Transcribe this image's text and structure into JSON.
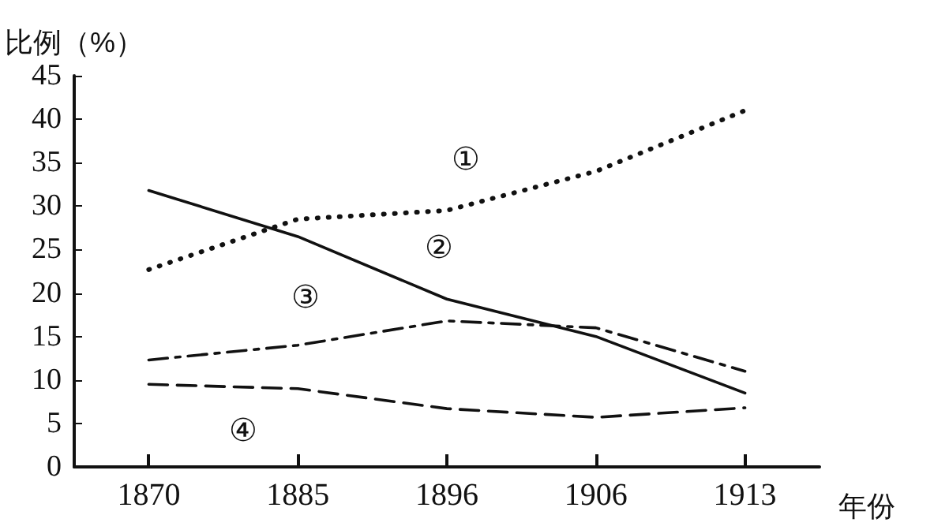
{
  "chart_data": {
    "type": "line",
    "ylabel": "比例（%）",
    "xlabel": "年份",
    "categories": [
      "1870",
      "1885",
      "1896",
      "1906",
      "1913"
    ],
    "series": [
      {
        "name": "①",
        "color": "#111111",
        "line_style": "dotted",
        "values": [
          22.7,
          28.5,
          29.5,
          34,
          41
        ]
      },
      {
        "name": "②",
        "color": "#111111",
        "line_style": "solid",
        "values": [
          31.8,
          26.5,
          19.3,
          15,
          8.5
        ]
      },
      {
        "name": "③",
        "color": "#111111",
        "line_style": "dashdot",
        "values": [
          12.3,
          14,
          16.8,
          16,
          11
        ]
      },
      {
        "name": "④",
        "color": "#111111",
        "line_style": "dashed",
        "values": [
          9.5,
          9,
          6.7,
          5.7,
          6.8
        ]
      }
    ],
    "ylim": [
      0,
      45
    ],
    "yticks": [
      0,
      5,
      10,
      15,
      20,
      25,
      30,
      35,
      40,
      45
    ],
    "grid": false,
    "marker": "none"
  }
}
